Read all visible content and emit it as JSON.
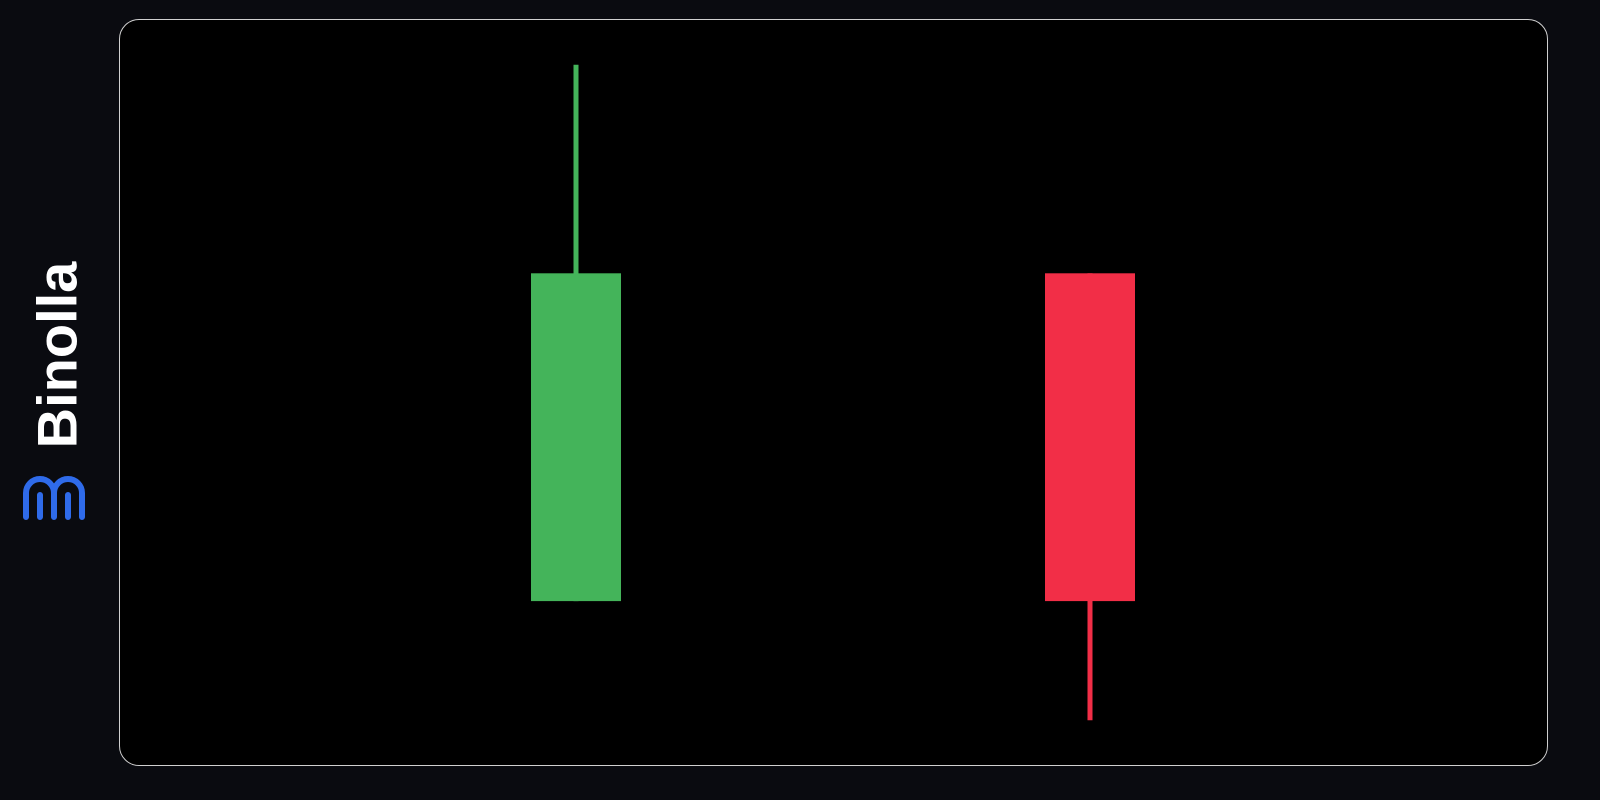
{
  "brand": {
    "name": "Binolla",
    "logo_color": "#2f6bea"
  },
  "chart_data": {
    "type": "candlestick",
    "axes_visible": false,
    "grid": false,
    "ylim": [
      0,
      100
    ],
    "candles": [
      {
        "direction": "bullish",
        "open": 22,
        "close": 66,
        "high": 94,
        "low": 22,
        "color": "#44b45a"
      },
      {
        "direction": "bearish",
        "open": 66,
        "close": 22,
        "high": 66,
        "low": 6,
        "color": "#f22e47"
      }
    ]
  }
}
